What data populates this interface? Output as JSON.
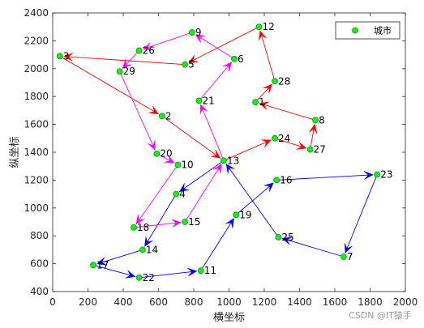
{
  "chart_data": {
    "type": "scatter",
    "title": "",
    "xlabel": "横坐标",
    "ylabel": "纵坐标",
    "xlim": [
      0,
      2000
    ],
    "ylim": [
      400,
      2400
    ],
    "xticks": [
      0,
      200,
      400,
      600,
      800,
      1000,
      1200,
      1400,
      1600,
      1800,
      2000
    ],
    "yticks": [
      400,
      600,
      800,
      1000,
      1200,
      1400,
      1600,
      1800,
      2000,
      2200,
      2400
    ],
    "grid": false,
    "legend": {
      "position": "top-right",
      "entries": [
        "城市"
      ]
    },
    "colors": {
      "marker_fill": "#00ff00",
      "marker_edge": "#2f7d2f",
      "route_red": "#ff0000",
      "route_magenta": "#ff00ff",
      "route_blue": "#0000ff",
      "axis": "#262626"
    },
    "points": [
      {
        "id": "1",
        "x": 1150,
        "y": 1760
      },
      {
        "id": "2",
        "x": 620,
        "y": 1660
      },
      {
        "id": "3",
        "x": 40,
        "y": 2090
      },
      {
        "id": "4",
        "x": 700,
        "y": 1100
      },
      {
        "id": "5",
        "x": 750,
        "y": 2030
      },
      {
        "id": "6",
        "x": 1030,
        "y": 2070
      },
      {
        "id": "7",
        "x": 1650,
        "y": 650
      },
      {
        "id": "8",
        "x": 1490,
        "y": 1630
      },
      {
        "id": "9",
        "x": 790,
        "y": 2260
      },
      {
        "id": "10",
        "x": 710,
        "y": 1310
      },
      {
        "id": "11",
        "x": 840,
        "y": 550
      },
      {
        "id": "12",
        "x": 1170,
        "y": 2300
      },
      {
        "id": "13",
        "x": 970,
        "y": 1340
      },
      {
        "id": "15",
        "x": 750,
        "y": 900
      },
      {
        "id": "16",
        "x": 1270,
        "y": 1200
      },
      {
        "id": "17",
        "x": 230,
        "y": 590
      },
      {
        "id": "18",
        "x": 460,
        "y": 860
      },
      {
        "id": "19",
        "x": 1040,
        "y": 950
      },
      {
        "id": "20",
        "x": 590,
        "y": 1390
      },
      {
        "id": "21",
        "x": 830,
        "y": 1770
      },
      {
        "id": "22",
        "x": 490,
        "y": 500
      },
      {
        "id": "23",
        "x": 1840,
        "y": 1240
      },
      {
        "id": "24",
        "x": 1260,
        "y": 1500
      },
      {
        "id": "25",
        "x": 1280,
        "y": 790
      },
      {
        "id": "26",
        "x": 490,
        "y": 2130
      },
      {
        "id": "27",
        "x": 1460,
        "y": 1420
      },
      {
        "id": "28",
        "x": 1260,
        "y": 1910
      },
      {
        "id": "29",
        "x": 380,
        "y": 1980
      },
      {
        "id": "14",
        "x": 510,
        "y": 700
      }
    ],
    "routes": [
      {
        "color": "#ff0000",
        "path": [
          "13",
          "24",
          "27",
          "8",
          "1",
          "28",
          "12",
          "5",
          "3",
          "2",
          "13"
        ]
      },
      {
        "color": "#ff00ff",
        "path": [
          "13",
          "21",
          "6",
          "9",
          "26",
          "29",
          "20",
          "10",
          "18",
          "15",
          "13"
        ]
      },
      {
        "color": "#0000ff",
        "path": [
          "13",
          "4",
          "14",
          "17",
          "22",
          "11",
          "19",
          "16",
          "23",
          "7",
          "25",
          "13"
        ]
      }
    ]
  },
  "watermark": "CSDN @IT猿手"
}
